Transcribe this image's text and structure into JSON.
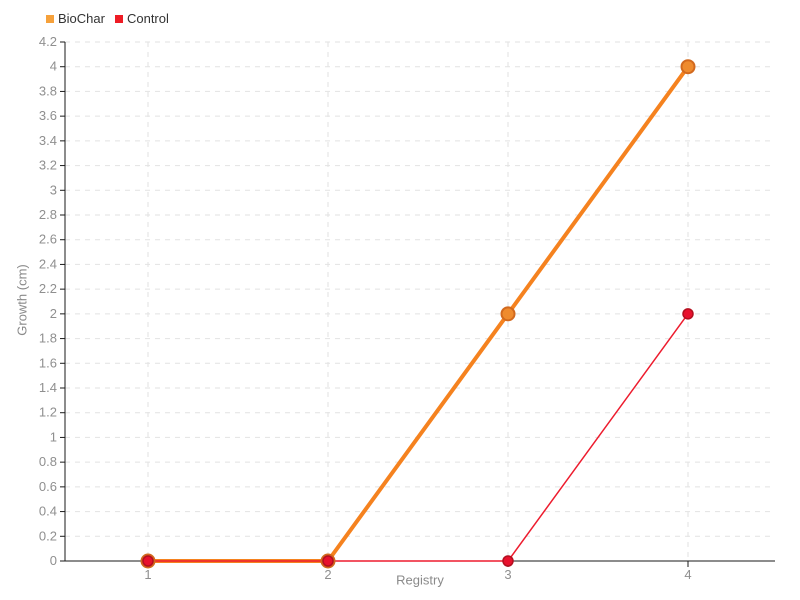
{
  "chart_data": {
    "type": "line",
    "x": [
      1,
      2,
      3,
      4
    ],
    "series": [
      {
        "name": "BioChar",
        "values": [
          0,
          0,
          2,
          4
        ],
        "color": "#f5821f",
        "legend_color": "#f6a13b",
        "marker_fill": "#ef8b2e",
        "marker_stroke": "#d2691e",
        "line_width": 4,
        "marker_radius": 6.5,
        "marker_stroke_width": 2
      },
      {
        "name": "Control",
        "values": [
          0,
          0,
          0,
          2
        ],
        "color": "#ed1c2e",
        "legend_color": "#ee1c25",
        "marker_fill": "#e8112d",
        "marker_stroke": "#b30f1f",
        "line_width": 1.5,
        "marker_radius": 5,
        "marker_stroke_width": 1.5
      }
    ],
    "title": "",
    "xlabel": "Registry",
    "ylabel": "Growth (cm)",
    "ylim": [
      0,
      4.2
    ],
    "ytick_step": 0.2,
    "xticks": [
      1,
      2,
      3,
      4
    ],
    "grid": "dashed",
    "grid_color": "#e2e2e2",
    "axis_color": "#1a1a1a",
    "tick_label_color": "#8f8f8f",
    "legend_position": "top-left"
  }
}
